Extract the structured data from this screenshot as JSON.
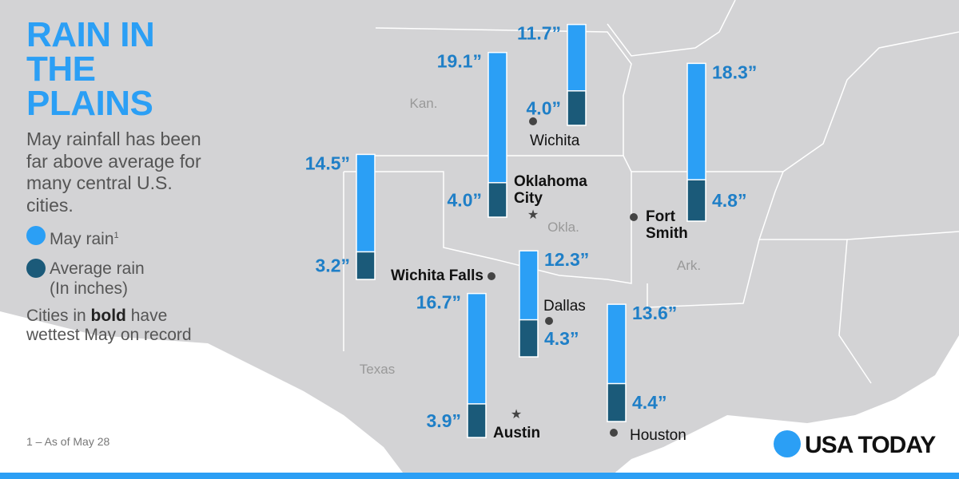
{
  "title_lines": [
    "RAIN IN",
    "THE PLAINS"
  ],
  "subtitle": "May rainfall has been far above average for many central U.S. cities.",
  "legend": [
    {
      "label": "May rain",
      "mark": "1",
      "color": "#2b9ff5"
    },
    {
      "label": "Average rain",
      "note": "(In inches)",
      "color": "#1b5a79"
    }
  ],
  "note": {
    "before": "Cities in",
    "bold": "bold",
    "after": "have wettest May on record"
  },
  "footnote": "1 – As of May 28",
  "logo": "USA TODAY",
  "states": [
    "Kan.",
    "Okla.",
    "Ark.",
    "Texas"
  ],
  "cities": [
    {
      "name_lines": [
        "Wichita"
      ],
      "bold": false,
      "may_rain": 11.7,
      "may_rain_label": "11.7”",
      "average_rain": 4.0,
      "average_label": "4.0”"
    },
    {
      "name_lines": [
        "Oklahoma",
        "City"
      ],
      "bold": true,
      "may_rain": 19.1,
      "may_rain_label": "19.1”",
      "average_rain": 4.0,
      "average_label": "4.0”"
    },
    {
      "name_lines": [
        "Fort",
        "Smith"
      ],
      "bold": true,
      "may_rain": 18.3,
      "may_rain_label": "18.3”",
      "average_rain": 4.8,
      "average_label": "4.8”"
    },
    {
      "name_lines": [
        "Wichita Falls"
      ],
      "bold": true,
      "may_rain": 14.5,
      "may_rain_label": "14.5”",
      "average_rain": 3.2,
      "average_label": "3.2”"
    },
    {
      "name_lines": [
        "Dallas"
      ],
      "bold": false,
      "may_rain": 12.3,
      "may_rain_label": "12.3”",
      "average_rain": 4.3,
      "average_label": "4.3”"
    },
    {
      "name_lines": [
        "Houston"
      ],
      "bold": false,
      "may_rain": 13.6,
      "may_rain_label": "13.6”",
      "average_rain": 4.4,
      "average_label": "4.4”"
    },
    {
      "name_lines": [
        "Austin"
      ],
      "bold": true,
      "may_rain": 16.7,
      "may_rain_label": "16.7”",
      "average_rain": 3.9,
      "average_label": "3.9”"
    }
  ]
}
